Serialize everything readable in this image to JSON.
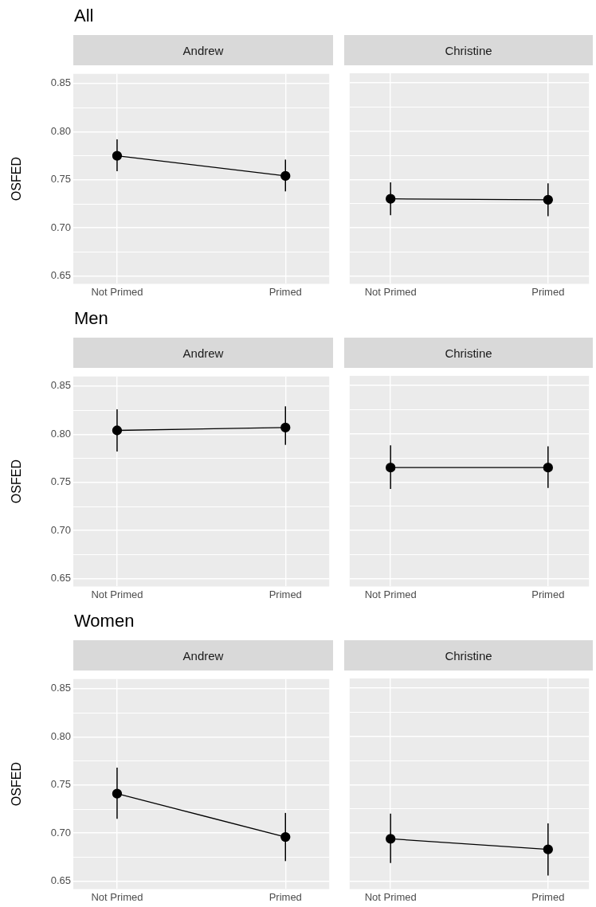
{
  "chart_data": [
    {
      "type": "line",
      "title": "All",
      "subtitle": "Andrew",
      "ylabel": "OSFED",
      "categories": [
        "Not Primed",
        "Primed"
      ],
      "values": [
        0.775,
        0.754
      ],
      "errors": [
        [
          0.759,
          0.792
        ],
        [
          0.738,
          0.771
        ]
      ],
      "color": "#000000",
      "marker": "circle",
      "ylim": [
        0.642,
        0.86
      ],
      "yticks": [
        {
          "value": 0.65,
          "label": "0.65"
        },
        {
          "value": 0.675,
          "label": null
        },
        {
          "value": 0.7,
          "label": "0.70"
        },
        {
          "value": 0.725,
          "label": null
        },
        {
          "value": 0.75,
          "label": "0.75"
        },
        {
          "value": 0.775,
          "label": null
        },
        {
          "value": 0.8,
          "label": "0.80"
        },
        {
          "value": 0.825,
          "label": null
        },
        {
          "value": 0.85,
          "label": "0.85"
        }
      ],
      "grid": true
    },
    {
      "type": "line",
      "subtitle": "Christine",
      "categories": [
        "Not Primed",
        "Primed"
      ],
      "values": [
        0.73,
        0.729
      ],
      "errors": [
        [
          0.713,
          0.747
        ],
        [
          0.712,
          0.746
        ]
      ],
      "color": "#000000",
      "marker": "circle",
      "ylim": [
        0.642,
        0.86
      ],
      "yticks": [
        {
          "value": 0.65,
          "label": null
        },
        {
          "value": 0.675,
          "label": null
        },
        {
          "value": 0.7,
          "label": null
        },
        {
          "value": 0.725,
          "label": null
        },
        {
          "value": 0.75,
          "label": null
        },
        {
          "value": 0.775,
          "label": null
        },
        {
          "value": 0.8,
          "label": null
        },
        {
          "value": 0.825,
          "label": null
        },
        {
          "value": 0.85,
          "label": null
        }
      ],
      "grid": true,
      "tick_labels": "x"
    },
    {
      "type": "line",
      "title": "Men",
      "subtitle": "Andrew",
      "ylabel": "OSFED",
      "categories": [
        "Not Primed",
        "Primed"
      ],
      "values": [
        0.804,
        0.807
      ],
      "errors": [
        [
          0.782,
          0.826
        ],
        [
          0.789,
          0.829
        ]
      ],
      "color": "#000000",
      "marker": "circle",
      "ylim": [
        0.642,
        0.86
      ],
      "yticks": [
        {
          "value": 0.65,
          "label": "0.65"
        },
        {
          "value": 0.675,
          "label": null
        },
        {
          "value": 0.7,
          "label": "0.70"
        },
        {
          "value": 0.725,
          "label": null
        },
        {
          "value": 0.75,
          "label": "0.75"
        },
        {
          "value": 0.775,
          "label": null
        },
        {
          "value": 0.8,
          "label": "0.80"
        },
        {
          "value": 0.825,
          "label": null
        },
        {
          "value": 0.85,
          "label": "0.85"
        }
      ],
      "grid": true
    },
    {
      "type": "line",
      "subtitle": "Christine",
      "categories": [
        "Not Primed",
        "Primed"
      ],
      "values": [
        0.765,
        0.765
      ],
      "errors": [
        [
          0.743,
          0.788
        ],
        [
          0.744,
          0.787
        ]
      ],
      "color": "#000000",
      "marker": "circle",
      "ylim": [
        0.642,
        0.86
      ],
      "yticks": [
        {
          "value": 0.65,
          "label": null
        },
        {
          "value": 0.675,
          "label": null
        },
        {
          "value": 0.7,
          "label": null
        },
        {
          "value": 0.725,
          "label": null
        },
        {
          "value": 0.75,
          "label": null
        },
        {
          "value": 0.775,
          "label": null
        },
        {
          "value": 0.8,
          "label": null
        },
        {
          "value": 0.825,
          "label": null
        },
        {
          "value": 0.85,
          "label": null
        }
      ],
      "grid": true,
      "tick_labels": "x"
    },
    {
      "type": "line",
      "title": "Women",
      "subtitle": "Andrew",
      "ylabel": "OSFED",
      "categories": [
        "Not Primed",
        "Primed"
      ],
      "values": [
        0.741,
        0.696
      ],
      "errors": [
        [
          0.715,
          0.768
        ],
        [
          0.671,
          0.721
        ]
      ],
      "color": "#000000",
      "marker": "circle",
      "ylim": [
        0.642,
        0.86
      ],
      "yticks": [
        {
          "value": 0.65,
          "label": "0.65"
        },
        {
          "value": 0.675,
          "label": null
        },
        {
          "value": 0.7,
          "label": "0.70"
        },
        {
          "value": 0.725,
          "label": null
        },
        {
          "value": 0.75,
          "label": "0.75"
        },
        {
          "value": 0.775,
          "label": null
        },
        {
          "value": 0.8,
          "label": "0.80"
        },
        {
          "value": 0.825,
          "label": null
        },
        {
          "value": 0.85,
          "label": "0.85"
        }
      ],
      "grid": true
    },
    {
      "type": "line",
      "subtitle": "Christine",
      "categories": [
        "Not Primed",
        "Primed"
      ],
      "values": [
        0.694,
        0.683
      ],
      "errors": [
        [
          0.669,
          0.72
        ],
        [
          0.656,
          0.71
        ]
      ],
      "color": "#000000",
      "marker": "circle",
      "ylim": [
        0.642,
        0.86
      ],
      "yticks": [
        {
          "value": 0.65,
          "label": null
        },
        {
          "value": 0.675,
          "label": null
        },
        {
          "value": 0.7,
          "label": null
        },
        {
          "value": 0.725,
          "label": null
        },
        {
          "value": 0.75,
          "label": null
        },
        {
          "value": 0.775,
          "label": null
        },
        {
          "value": 0.8,
          "label": null
        },
        {
          "value": 0.825,
          "label": null
        },
        {
          "value": 0.85,
          "label": null
        }
      ],
      "grid": true,
      "tick_labels": "x"
    }
  ]
}
